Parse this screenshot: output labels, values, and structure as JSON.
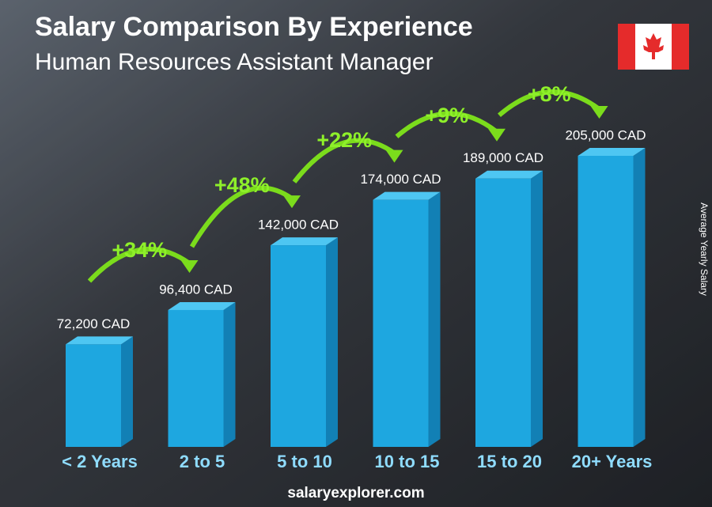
{
  "chart_data": {
    "type": "bar",
    "title": "Salary Comparison By Experience",
    "subtitle": "Human Resources Assistant Manager",
    "categories": [
      "< 2 Years",
      "2 to 5",
      "5 to 10",
      "10 to 15",
      "15 to 20",
      "20+ Years"
    ],
    "values": [
      72200,
      96400,
      142000,
      174000,
      189000,
      205000
    ],
    "value_labels": [
      "72,200 CAD",
      "96,400 CAD",
      "142,000 CAD",
      "174,000 CAD",
      "189,000 CAD",
      "205,000 CAD"
    ],
    "changes": [
      "+34%",
      "+48%",
      "+22%",
      "+9%",
      "+8%"
    ],
    "y_label": "Average Yearly Salary",
    "color": "#1ea7e0",
    "site": "salaryexplorer.com"
  }
}
